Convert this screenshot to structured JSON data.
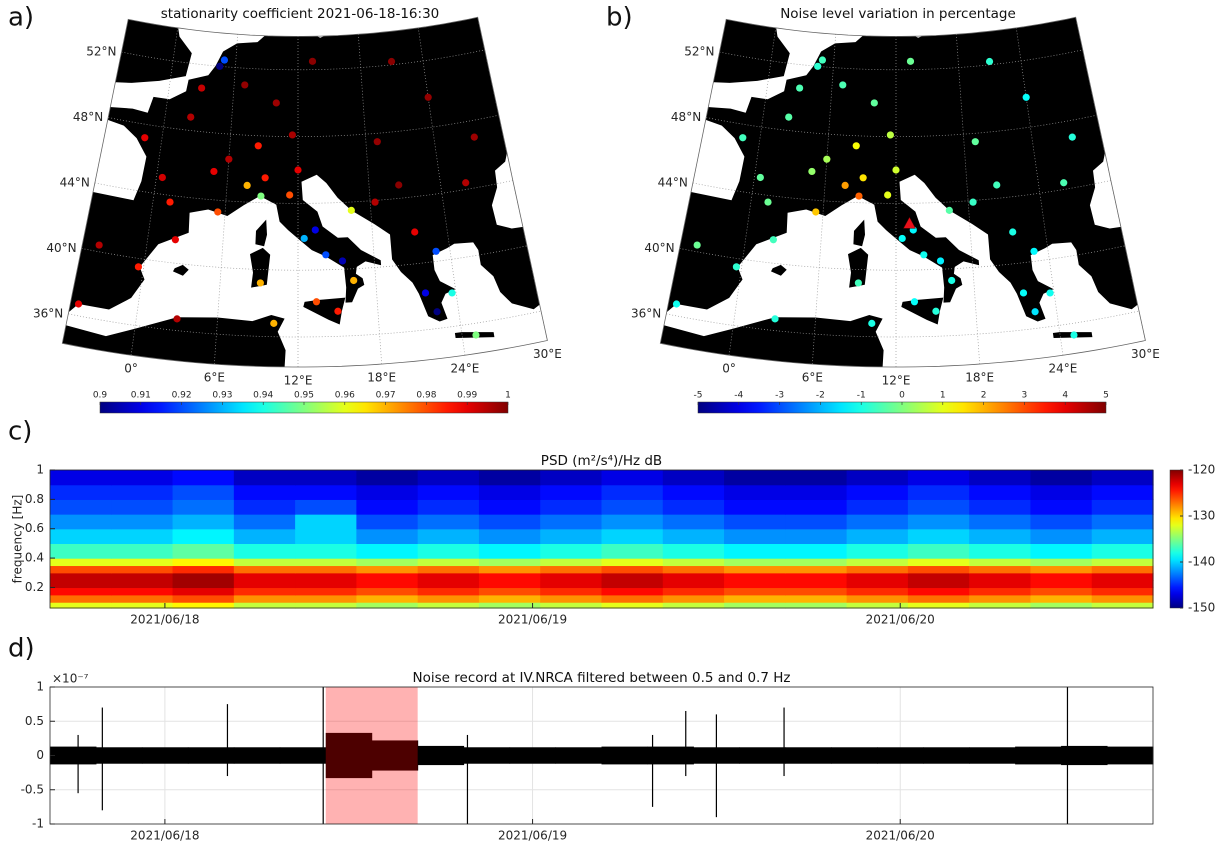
{
  "chart_data": [
    {
      "type": "map",
      "panel_label": "a)",
      "title": "stationarity coefficient 2021-06-18-16:30",
      "xlim": [
        -5,
        30
      ],
      "ylim": [
        34.2,
        54
      ],
      "xticks": [
        {
          "value": 0,
          "label": "0°"
        },
        {
          "value": 6,
          "label": "6°E"
        },
        {
          "value": 12,
          "label": "12°E"
        },
        {
          "value": 18,
          "label": "18°E"
        },
        {
          "value": 24,
          "label": "24°E"
        },
        {
          "value": 30,
          "label": "30°E"
        }
      ],
      "yticks": [
        {
          "value": 36,
          "label": "36°N"
        },
        {
          "value": 40,
          "label": "40°N"
        },
        {
          "value": 44,
          "label": "44°N"
        },
        {
          "value": 48,
          "label": "48°N"
        },
        {
          "value": 52,
          "label": "52°N"
        }
      ],
      "colormap": "jet",
      "clim": [
        0.9,
        1
      ],
      "cticks": [
        0.9,
        0.91,
        0.92,
        0.93,
        0.94,
        0.95,
        0.96,
        0.97,
        0.98,
        0.99,
        1
      ],
      "x": [
        2.3,
        -1.5,
        0.5,
        4.8,
        1.4,
        5.4,
        6,
        3,
        7,
        10,
        13.4,
        11.5,
        8.5,
        4.5,
        4.9,
        7.7,
        9.2,
        11.3,
        12,
        8.9,
        12.5,
        13.4,
        14.2,
        15.5,
        16.3,
        13.4,
        15,
        9.1,
        16.4,
        18.4,
        20.5,
        21.4,
        22.9,
        21.7,
        23.7,
        22.4,
        25,
        19,
        21,
        26.1,
        24,
        27.5,
        -3.7,
        2.2,
        -0.4,
        -4.4,
        3,
        10.2
      ],
      "y": [
        48.8,
        47.2,
        45,
        45.7,
        43.6,
        43.3,
        46.5,
        50.6,
        51,
        50,
        52.5,
        48.1,
        47.4,
        52,
        52.4,
        45,
        45.5,
        44.5,
        46,
        44.4,
        41.9,
        42.4,
        40.9,
        40.5,
        39.3,
        38.1,
        37.5,
        39.2,
        43.5,
        43.9,
        44.8,
        41.9,
        40.6,
        38.2,
        38,
        37,
        35.3,
        47.5,
        52.2,
        44.4,
        49.8,
        47,
        40.4,
        41.4,
        39.5,
        36.7,
        36.7,
        36.8
      ],
      "values": [
        0.995,
        0.99,
        0.992,
        0.99,
        0.985,
        0.98,
        0.995,
        0.993,
        0.998,
        0.997,
        0.999,
        0.996,
        0.985,
        0.9,
        0.92,
        0.97,
        0.985,
        0.98,
        0.99,
        0.95,
        0.93,
        0.91,
        0.92,
        0.905,
        0.97,
        0.98,
        0.985,
        0.97,
        0.96,
        0.995,
        0.999,
        0.99,
        0.92,
        0.91,
        0.94,
        0.9,
        0.95,
        0.998,
        0.999,
        0.995,
        0.998,
        0.997,
        0.995,
        0.99,
        0.985,
        0.99,
        0.995,
        0.97
      ]
    },
    {
      "type": "map",
      "panel_label": "b)",
      "title": "Noise level variation in percentage",
      "xlim": [
        -5,
        30
      ],
      "ylim": [
        34.2,
        54
      ],
      "xticks": [
        {
          "value": 0,
          "label": "0°"
        },
        {
          "value": 6,
          "label": "6°E"
        },
        {
          "value": 12,
          "label": "12°E"
        },
        {
          "value": 18,
          "label": "18°E"
        },
        {
          "value": 24,
          "label": "24°E"
        },
        {
          "value": 30,
          "label": "30°E"
        }
      ],
      "yticks": [
        {
          "value": 36,
          "label": "36°N"
        },
        {
          "value": 40,
          "label": "40°N"
        },
        {
          "value": 44,
          "label": "44°N"
        },
        {
          "value": 48,
          "label": "48°N"
        },
        {
          "value": 52,
          "label": "52°N"
        }
      ],
      "colormap": "jet",
      "clim": [
        -5,
        5
      ],
      "cticks": [
        -5,
        -4,
        -3,
        -2,
        -1,
        0,
        1,
        2,
        3,
        4,
        5
      ],
      "x": [
        2.3,
        -1.5,
        0.5,
        4.8,
        1.4,
        5.4,
        6,
        3,
        7,
        10,
        13.4,
        11.5,
        8.5,
        4.5,
        4.9,
        7.7,
        9.2,
        11.3,
        12,
        8.9,
        12.5,
        13.4,
        14.2,
        15.5,
        16.3,
        13.4,
        15,
        9.1,
        16.4,
        18.4,
        20.5,
        21.4,
        22.9,
        21.7,
        23.7,
        22.4,
        25,
        19,
        21,
        26.1,
        24,
        27.5,
        -3.7,
        2.2,
        -0.4,
        -4.4,
        3,
        10.2
      ],
      "y": [
        48.8,
        47.2,
        45,
        45.7,
        43.6,
        43.3,
        46.5,
        50.6,
        51,
        50,
        52.5,
        48.1,
        47.4,
        52,
        52.4,
        45,
        45.5,
        44.5,
        46,
        44.4,
        41.9,
        42.4,
        40.9,
        40.5,
        39.3,
        38.1,
        37.5,
        39.2,
        43.5,
        43.9,
        44.8,
        41.9,
        40.6,
        38.2,
        38,
        37,
        35.3,
        47.5,
        52.2,
        44.4,
        49.8,
        47,
        40.4,
        41.4,
        39.5,
        36.7,
        36.7,
        36.8
      ],
      "values": [
        -0.4,
        -0.6,
        -0.3,
        0.2,
        -0.2,
        1.8,
        0.4,
        -0.5,
        -0.5,
        -0.3,
        -0.2,
        0.6,
        1.2,
        -0.8,
        -0.6,
        2.2,
        1.5,
        1,
        0.8,
        2.8,
        -1.2,
        -1.3,
        -1.1,
        -1.4,
        -1,
        -1.2,
        -0.9,
        -0.6,
        -0.4,
        -0.7,
        -0.6,
        -1,
        -1.3,
        -1.2,
        -1.1,
        -1.5,
        -1,
        -0.3,
        -0.8,
        -0.5,
        -1.2,
        -0.9,
        -0.2,
        -0.6,
        -0.8,
        -1.1,
        -0.9,
        -1
      ],
      "station": {
        "x": 13.1,
        "y": 42.8,
        "color": "#e8101a"
      }
    },
    {
      "type": "heatmap",
      "panel_label": "c)",
      "title": "PSD (m²/s⁴)/Hz dB",
      "ylabel": "frequency [Hz]",
      "xlim": [
        "2021-06-17T16:30",
        "2021-06-20T16:30"
      ],
      "xticks": [
        {
          "value": "2021-06-18T00:00",
          "label": "2021/06/18"
        },
        {
          "value": "2021-06-19T00:00",
          "label": "2021/06/19"
        },
        {
          "value": "2021-06-20T00:00",
          "label": "2021/06/20"
        }
      ],
      "ylim": [
        0.06,
        1
      ],
      "yticks": [
        0.2,
        0.4,
        0.6,
        0.8,
        1
      ],
      "xbins": [
        "2021-06-17T16:30",
        "2021-06-17T20:30",
        "2021-06-18T00:30",
        "2021-06-18T04:30",
        "2021-06-18T08:30",
        "2021-06-18T12:30",
        "2021-06-18T16:30",
        "2021-06-18T20:30",
        "2021-06-19T00:30",
        "2021-06-19T04:30",
        "2021-06-19T08:30",
        "2021-06-19T12:30",
        "2021-06-19T16:30",
        "2021-06-19T20:30",
        "2021-06-20T00:30",
        "2021-06-20T04:30",
        "2021-06-20T08:30",
        "2021-06-20T12:30",
        "2021-06-20T16:30"
      ],
      "ybins": [
        0.06,
        0.1,
        0.15,
        0.2,
        0.25,
        0.3,
        0.35,
        0.4,
        0.5,
        0.6,
        0.7,
        0.8,
        0.9,
        1
      ],
      "values": [
        [
          -132,
          -132,
          -131,
          -133,
          -133,
          -134,
          -133,
          -134,
          -133,
          -132,
          -133,
          -134,
          -134,
          -133,
          -132,
          -133,
          -134,
          -133
        ],
        [
          -127,
          -127,
          -126,
          -128,
          -128,
          -129,
          -128,
          -129,
          -128,
          -127,
          -128,
          -129,
          -129,
          -128,
          -127,
          -128,
          -129,
          -128
        ],
        [
          -124,
          -124,
          -123,
          -125,
          -125,
          -126,
          -125,
          -126,
          -125,
          -124,
          -125,
          -126,
          -126,
          -125,
          -124,
          -125,
          -126,
          -125
        ],
        [
          -122,
          -122,
          -121,
          -123,
          -123,
          -124,
          -123,
          -124,
          -123,
          -122,
          -123,
          -124,
          -124,
          -123,
          -122,
          -123,
          -124,
          -123
        ],
        [
          -122,
          -122,
          -121,
          -123,
          -123,
          -124,
          -123,
          -124,
          -123,
          -122,
          -123,
          -124,
          -124,
          -123,
          -122,
          -123,
          -124,
          -123
        ],
        [
          -126,
          -126,
          -125,
          -127,
          -127,
          -128,
          -127,
          -128,
          -127,
          -126,
          -127,
          -128,
          -128,
          -127,
          -126,
          -127,
          -128,
          -127
        ],
        [
          -132,
          -132,
          -131,
          -133,
          -133,
          -134,
          -133,
          -134,
          -133,
          -132,
          -133,
          -134,
          -134,
          -133,
          -132,
          -133,
          -134,
          -133
        ],
        [
          -137,
          -137,
          -136,
          -138,
          -138,
          -139,
          -138,
          -139,
          -138,
          -137,
          -138,
          -139,
          -139,
          -138,
          -137,
          -138,
          -139,
          -138
        ],
        [
          -140,
          -140,
          -139,
          -141,
          -140,
          -142,
          -141,
          -142,
          -141,
          -140,
          -141,
          -142,
          -142,
          -141,
          -140,
          -141,
          -142,
          -141
        ],
        [
          -142,
          -142,
          -141,
          -143,
          -140,
          -144,
          -143,
          -144,
          -143,
          -142,
          -143,
          -144,
          -144,
          -143,
          -142,
          -143,
          -144,
          -143
        ],
        [
          -144,
          -144,
          -143,
          -145,
          -144,
          -146,
          -145,
          -146,
          -145,
          -144,
          -145,
          -146,
          -146,
          -145,
          -144,
          -145,
          -146,
          -145
        ],
        [
          -145,
          -145,
          -144,
          -146,
          -146,
          -147,
          -146,
          -147,
          -146,
          -145,
          -146,
          -147,
          -147,
          -146,
          -145,
          -146,
          -147,
          -146
        ],
        [
          -147,
          -147,
          -146,
          -148,
          -148,
          -149,
          -148,
          -149,
          -148,
          -147,
          -148,
          -149,
          -149,
          -148,
          -147,
          -148,
          -149,
          -148
        ]
      ],
      "colormap": "jet",
      "clim": [
        -150,
        -120
      ],
      "cticks": [
        -150,
        -140,
        -130,
        -120
      ]
    },
    {
      "type": "line",
      "panel_label": "d)",
      "title": "Noise record at IV.NRCA filtered between 0.5 and 0.7 Hz",
      "y_multiplier": "×10⁻⁷",
      "xlim": [
        "2021-06-17T16:30",
        "2021-06-20T16:30"
      ],
      "xticks": [
        {
          "value": "2021-06-18T00:00",
          "label": "2021/06/18"
        },
        {
          "value": "2021-06-19T00:00",
          "label": "2021/06/19"
        },
        {
          "value": "2021-06-20T00:00",
          "label": "2021/06/20"
        }
      ],
      "ylim": [
        -1,
        1
      ],
      "yticks": [
        -1,
        -0.5,
        0,
        0.5,
        1
      ],
      "grid": true,
      "color": "#000000",
      "x": [
        "2021-06-17T16:30",
        "2021-06-17T19:30",
        "2021-06-17T22:30",
        "2021-06-18T01:30",
        "2021-06-18T04:30",
        "2021-06-18T07:30",
        "2021-06-18T10:30",
        "2021-06-18T13:30",
        "2021-06-18T16:30",
        "2021-06-18T19:30",
        "2021-06-18T22:30",
        "2021-06-19T01:30",
        "2021-06-19T04:30",
        "2021-06-19T07:30",
        "2021-06-19T10:30",
        "2021-06-19T13:30",
        "2021-06-19T16:30",
        "2021-06-19T19:30",
        "2021-06-19T22:30",
        "2021-06-20T01:30",
        "2021-06-20T04:30",
        "2021-06-20T07:30",
        "2021-06-20T10:30",
        "2021-06-20T13:30"
      ],
      "values": [
        0.13,
        0.12,
        0.12,
        0.12,
        0.12,
        0.12,
        0.33,
        0.22,
        0.14,
        0.12,
        0.12,
        0.12,
        0.13,
        0.13,
        0.12,
        0.12,
        0.12,
        0.12,
        0.12,
        0.12,
        0.12,
        0.13,
        0.14,
        0.13
      ],
      "spikes": {
        "x": [
          "2021-06-17T18:20",
          "2021-06-17T19:55",
          "2021-06-18T04:05",
          "2021-06-18T10:20",
          "2021-06-18T19:45",
          "2021-06-19T07:50",
          "2021-06-19T10:00",
          "2021-06-19T12:00",
          "2021-06-19T16:25",
          "2021-06-20T10:55"
        ],
        "upper": [
          0.3,
          0.7,
          0.75,
          1,
          0.3,
          0.3,
          0.65,
          0.6,
          0.7,
          1
        ],
        "lower": [
          -0.55,
          -0.8,
          -0.3,
          -1,
          -1,
          -0.75,
          -0.3,
          -0.9,
          -0.3,
          -1
        ]
      },
      "highlight": {
        "x": [
          "2021-06-18T10:30",
          "2021-06-18T16:30"
        ],
        "color": "#ff0000"
      }
    }
  ]
}
